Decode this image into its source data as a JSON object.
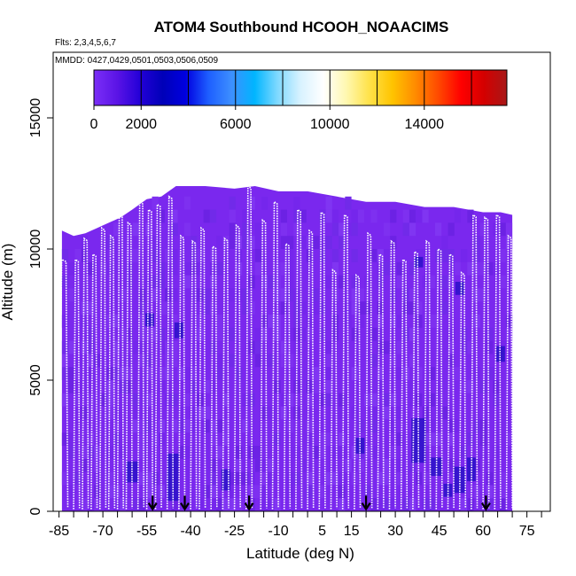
{
  "chart_data": {
    "type": "heatmap",
    "title": "ATOM4 Southbound HCOOH_NOAACIMS",
    "subtitle_flights": "Flts: 2,3,4,5,6,7",
    "subtitle_dates": "MMDD: 0427,0429,0501,0503,0506,0509",
    "xlabel": "Latitude (deg N)",
    "ylabel": "Altitude (m)",
    "xlim": [
      -87,
      83
    ],
    "ylim": [
      0,
      17500
    ],
    "x_ticks": [
      -85,
      -70,
      -55,
      -40,
      -25,
      -10,
      5,
      15,
      30,
      45,
      60,
      75
    ],
    "x_tick_labels": [
      "-85",
      "-70",
      "-55",
      "-40",
      "-25",
      "-10",
      "5",
      "15",
      "30",
      "45",
      "60",
      "75"
    ],
    "x_minor_ticks": [
      -80,
      -75,
      -65,
      -60,
      -50,
      -45,
      -35,
      -30,
      -20,
      -15,
      -5,
      0,
      10,
      20,
      25,
      35,
      40,
      50,
      55,
      65,
      70,
      80
    ],
    "y_ticks": [
      0,
      5000,
      10000,
      15000
    ],
    "y_tick_labels": [
      "0",
      "5000",
      "10000",
      "15000"
    ],
    "colorbar": {
      "min": 0,
      "max": 17500,
      "ticks": [
        0,
        2000,
        6000,
        10000,
        14000
      ],
      "tick_labels": [
        "0",
        "2000",
        "6000",
        "10000",
        "14000"
      ],
      "colors": [
        "#7b2ff7",
        "#5b14e6",
        "#2400d8",
        "#0000b8",
        "#0000e0",
        "#1e5fff",
        "#3d8fff",
        "#00b5ff",
        "#7fd9ff",
        "#d8f2ff",
        "#ffffff",
        "#fff8b0",
        "#ffe24a",
        "#ffc400",
        "#ff8c00",
        "#ff4a00",
        "#ff0000",
        "#d40000",
        "#a81818"
      ]
    },
    "background_color": "#7a28ee",
    "dark_patch_color": "#2a10c8",
    "flight_track_color": "#ffffff",
    "arrow_color": "#000000",
    "upper_envelope": [
      {
        "lat": -84,
        "alt": 10700
      },
      {
        "lat": -80,
        "alt": 10500
      },
      {
        "lat": -76,
        "alt": 10600
      },
      {
        "lat": -72,
        "alt": 10800
      },
      {
        "lat": -68,
        "alt": 11000
      },
      {
        "lat": -64,
        "alt": 11200
      },
      {
        "lat": -60,
        "alt": 11500
      },
      {
        "lat": -55,
        "alt": 11900
      },
      {
        "lat": -50,
        "alt": 12000
      },
      {
        "lat": -45,
        "alt": 12400
      },
      {
        "lat": -35,
        "alt": 12400
      },
      {
        "lat": -25,
        "alt": 12300
      },
      {
        "lat": -18,
        "alt": 12400
      },
      {
        "lat": -10,
        "alt": 12200
      },
      {
        "lat": 0,
        "alt": 12200
      },
      {
        "lat": 10,
        "alt": 12000
      },
      {
        "lat": 20,
        "alt": 11800
      },
      {
        "lat": 30,
        "alt": 11800
      },
      {
        "lat": 40,
        "alt": 11600
      },
      {
        "lat": 50,
        "alt": 11600
      },
      {
        "lat": 60,
        "alt": 11400
      },
      {
        "lat": 66,
        "alt": 11400
      },
      {
        "lat": 70,
        "alt": 11300
      }
    ],
    "flight_profiles": [
      {
        "lat_low": -85,
        "lat_high": -82,
        "alt_top": 9600
      },
      {
        "lat_low": -80,
        "lat_high": -78,
        "alt_top": 9600
      },
      {
        "lat_low": -77,
        "lat_high": -75,
        "alt_top": 10400
      },
      {
        "lat_low": -74,
        "lat_high": -72,
        "alt_top": 9800
      },
      {
        "lat_low": -71,
        "lat_high": -69,
        "alt_top": 10800
      },
      {
        "lat_low": -68,
        "lat_high": -66,
        "alt_top": 10500
      },
      {
        "lat_low": -65,
        "lat_high": -63,
        "alt_top": 11300
      },
      {
        "lat_low": -62,
        "lat_high": -60,
        "alt_top": 11000
      },
      {
        "lat_low": -58,
        "lat_high": -56,
        "alt_top": 11800
      },
      {
        "lat_low": -55,
        "lat_high": -53,
        "alt_top": 11500
      },
      {
        "lat_low": -52,
        "lat_high": -50,
        "alt_top": 11700
      },
      {
        "lat_low": -48,
        "lat_high": -46,
        "alt_top": 12000
      },
      {
        "lat_low": -44,
        "lat_high": -42,
        "alt_top": 10500
      },
      {
        "lat_low": -40,
        "lat_high": -38,
        "alt_top": 10300
      },
      {
        "lat_low": -37,
        "lat_high": -35,
        "alt_top": 10800
      },
      {
        "lat_low": -33,
        "lat_high": -31,
        "alt_top": 10100
      },
      {
        "lat_low": -29,
        "lat_high": -27,
        "alt_top": 10400
      },
      {
        "lat_low": -25,
        "lat_high": -23,
        "alt_top": 10900
      },
      {
        "lat_low": -21,
        "lat_high": -19,
        "alt_top": 12400
      },
      {
        "lat_low": -16,
        "lat_high": -14,
        "alt_top": 11100
      },
      {
        "lat_low": -12,
        "lat_high": -10,
        "alt_top": 11800
      },
      {
        "lat_low": -8,
        "lat_high": -6,
        "alt_top": 10200
      },
      {
        "lat_low": -4,
        "lat_high": -2,
        "alt_top": 11500
      },
      {
        "lat_low": 0,
        "lat_high": 2,
        "alt_top": 10700
      },
      {
        "lat_low": 4,
        "lat_high": 6,
        "alt_top": 11400
      },
      {
        "lat_low": 8,
        "lat_high": 10,
        "alt_top": 9200
      },
      {
        "lat_low": 12,
        "lat_high": 14,
        "alt_top": 11300
      },
      {
        "lat_low": 16,
        "lat_high": 18,
        "alt_top": 9000
      },
      {
        "lat_low": 20,
        "lat_high": 22,
        "alt_top": 10600
      },
      {
        "lat_low": 24,
        "lat_high": 26,
        "alt_top": 9800
      },
      {
        "lat_low": 28,
        "lat_high": 30,
        "alt_top": 10300
      },
      {
        "lat_low": 32,
        "lat_high": 34,
        "alt_top": 9600
      },
      {
        "lat_low": 36,
        "lat_high": 38,
        "alt_top": 9900
      },
      {
        "lat_low": 40,
        "lat_high": 42,
        "alt_top": 10300
      },
      {
        "lat_low": 44,
        "lat_high": 46,
        "alt_top": 10000
      },
      {
        "lat_low": 48,
        "lat_high": 50,
        "alt_top": 9800
      },
      {
        "lat_low": 52,
        "lat_high": 54,
        "alt_top": 9100
      },
      {
        "lat_low": 56,
        "lat_high": 58,
        "alt_top": 11300
      },
      {
        "lat_low": 60,
        "lat_high": 62,
        "alt_top": 11200
      },
      {
        "lat_low": 64,
        "lat_high": 66,
        "alt_top": 11300
      },
      {
        "lat_low": 68,
        "lat_high": 70,
        "alt_top": 10500
      }
    ],
    "dark_patches": [
      {
        "lat": -60,
        "alt": 1500,
        "dlat": 4,
        "dalt": 800
      },
      {
        "lat": -46,
        "alt": 1300,
        "dlat": 4,
        "dalt": 1800
      },
      {
        "lat": -44,
        "alt": 6900,
        "dlat": 3,
        "dalt": 600
      },
      {
        "lat": -54,
        "alt": 7300,
        "dlat": 3,
        "dalt": 500
      },
      {
        "lat": -28,
        "alt": 1200,
        "dlat": 3,
        "dalt": 800
      },
      {
        "lat": 18,
        "alt": 2500,
        "dlat": 3,
        "dalt": 600
      },
      {
        "lat": 38,
        "alt": 2700,
        "dlat": 5,
        "dalt": 1700
      },
      {
        "lat": 44,
        "alt": 1700,
        "dlat": 4,
        "dalt": 700
      },
      {
        "lat": 52,
        "alt": 1200,
        "dlat": 4,
        "dalt": 1000
      },
      {
        "lat": 56,
        "alt": 1600,
        "dlat": 3,
        "dalt": 900
      },
      {
        "lat": 48,
        "alt": 800,
        "dlat": 3,
        "dalt": 500
      },
      {
        "lat": 38,
        "alt": 9500,
        "dlat": 3,
        "dalt": 400
      },
      {
        "lat": 52,
        "alt": 8500,
        "dlat": 3,
        "dalt": 500
      },
      {
        "lat": 66,
        "alt": 6000,
        "dlat": 3,
        "dalt": 600
      }
    ],
    "arrows_lat": [
      -53,
      -42,
      -20,
      20,
      61
    ]
  }
}
